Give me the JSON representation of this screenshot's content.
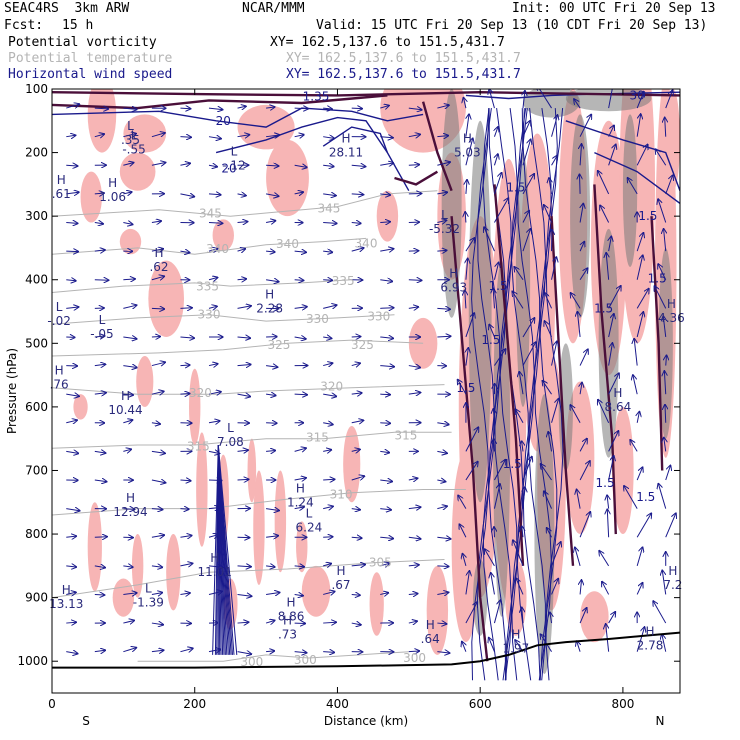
{
  "header": {
    "model": "SEAC4RS  3km ARW",
    "org": "NCAR/MMM",
    "init": "Init: 00 UTC Fri 20 Sep 13",
    "fcst_label": "Fcst:",
    "fcst_value": "15 h",
    "valid": "Valid: 15 UTC Fri 20 Sep 13 (10 CDT Fri 20 Sep 13)"
  },
  "fields": [
    {
      "name": "Potential vorticity",
      "xy": "XY= 162.5,137.6 to 151.5,431.7",
      "color": "#000000"
    },
    {
      "name": "Potential temperature",
      "xy": "XY= 162.5,137.6 to 151.5,431.7",
      "color": "#b4b4b4"
    },
    {
      "name": "Horizontal wind speed",
      "xy": "XY= 162.5,137.6 to 151.5,431.7",
      "color": "#1a1a8c"
    }
  ],
  "chart_data": {
    "type": "cross-section",
    "xlabel": "Distance (km)",
    "ylabel": "Pressure (hPa)",
    "xlim": [
      0,
      880
    ],
    "ylim": [
      1050,
      100
    ],
    "x_ticks": [
      0,
      200,
      400,
      600,
      800
    ],
    "y_ticks": [
      100,
      200,
      300,
      400,
      500,
      600,
      700,
      800,
      900,
      1000
    ],
    "x_end_labels": {
      "left": "S",
      "right": "N"
    },
    "theta_contours": [
      {
        "label": "345",
        "points": [
          [
            0,
            300
          ],
          [
            150,
            290
          ],
          [
            250,
            300
          ],
          [
            300,
            295
          ],
          [
            400,
            285
          ],
          [
            470,
            265
          ],
          [
            540,
            260
          ]
        ]
      },
      {
        "label": "340",
        "points": [
          [
            0,
            360
          ],
          [
            120,
            350
          ],
          [
            200,
            360
          ],
          [
            300,
            345
          ],
          [
            380,
            340
          ],
          [
            440,
            335
          ]
        ]
      },
      {
        "label": "335",
        "points": [
          [
            0,
            420
          ],
          [
            100,
            410
          ],
          [
            200,
            405
          ],
          [
            250,
            410
          ],
          [
            350,
            405
          ],
          [
            420,
            400
          ]
        ]
      },
      {
        "label": "330",
        "points": [
          [
            0,
            470
          ],
          [
            120,
            460
          ],
          [
            220,
            455
          ],
          [
            300,
            465
          ],
          [
            400,
            460
          ],
          [
            480,
            455
          ]
        ]
      },
      {
        "label": "325",
        "points": [
          [
            0,
            520
          ],
          [
            150,
            515
          ],
          [
            240,
            510
          ],
          [
            330,
            500
          ],
          [
            420,
            495
          ],
          [
            520,
            500
          ]
        ]
      },
      {
        "label": "320",
        "points": [
          [
            0,
            570
          ],
          [
            120,
            580
          ],
          [
            230,
            580
          ],
          [
            300,
            575
          ],
          [
            420,
            570
          ],
          [
            550,
            565
          ]
        ]
      },
      {
        "label": "315",
        "points": [
          [
            0,
            665
          ],
          [
            120,
            660
          ],
          [
            200,
            660
          ],
          [
            300,
            650
          ],
          [
            380,
            650
          ],
          [
            480,
            640
          ],
          [
            560,
            640
          ]
        ]
      },
      {
        "label": "310",
        "points": [
          [
            0,
            770
          ],
          [
            120,
            760
          ],
          [
            220,
            760
          ],
          [
            330,
            745
          ],
          [
            420,
            735
          ],
          [
            520,
            730
          ],
          [
            580,
            730
          ]
        ]
      },
      {
        "label": "305",
        "points": [
          [
            0,
            900
          ],
          [
            120,
            880
          ],
          [
            220,
            860
          ],
          [
            330,
            855
          ],
          [
            450,
            845
          ],
          [
            550,
            840
          ]
        ]
      },
      {
        "label": "300",
        "points": [
          [
            120,
            1000
          ],
          [
            240,
            1000
          ],
          [
            300,
            990
          ],
          [
            360,
            995
          ],
          [
            430,
            990
          ],
          [
            500,
            985
          ]
        ]
      }
    ],
    "theta_labels": [
      {
        "text": "345",
        "x": 222,
        "p": 296
      },
      {
        "text": "345",
        "x": 388,
        "p": 288
      },
      {
        "text": "340",
        "x": 232,
        "p": 352
      },
      {
        "text": "340",
        "x": 330,
        "p": 344
      },
      {
        "text": "340",
        "x": 440,
        "p": 343
      },
      {
        "text": "335",
        "x": 218,
        "p": 411
      },
      {
        "text": "335",
        "x": 408,
        "p": 402
      },
      {
        "text": "330",
        "x": 220,
        "p": 455
      },
      {
        "text": "330",
        "x": 372,
        "p": 462
      },
      {
        "text": "330",
        "x": 458,
        "p": 458
      },
      {
        "text": "325",
        "x": 318,
        "p": 503
      },
      {
        "text": "325",
        "x": 435,
        "p": 503
      },
      {
        "text": "320",
        "x": 208,
        "p": 578
      },
      {
        "text": "320",
        "x": 392,
        "p": 568
      },
      {
        "text": "315",
        "x": 205,
        "p": 662
      },
      {
        "text": "315",
        "x": 372,
        "p": 648
      },
      {
        "text": "315",
        "x": 496,
        "p": 645
      },
      {
        "text": "310",
        "x": 405,
        "p": 738
      },
      {
        "text": "305",
        "x": 460,
        "p": 845
      },
      {
        "text": "300",
        "x": 280,
        "p": 1001
      },
      {
        "text": "300",
        "x": 355,
        "p": 998
      },
      {
        "text": "300",
        "x": 508,
        "p": 995
      }
    ],
    "pv_extrema": [
      {
        "kind": "L",
        "label": ".35",
        "x": 110,
        "p": 180
      },
      {
        "kind": "L",
        "label": "-.55",
        "x": 115,
        "p": 195
      },
      {
        "kind": "H",
        "label": ".61",
        "x": 13,
        "p": 265
      },
      {
        "kind": "H",
        "label": "1.06",
        "x": 85,
        "p": 270
      },
      {
        "kind": "L",
        "label": "-.12",
        "x": 255,
        "p": 220
      },
      {
        "kind": "H",
        "label": ".62",
        "x": 150,
        "p": 380
      },
      {
        "kind": "H",
        "label": "2.28",
        "x": 305,
        "p": 445
      },
      {
        "kind": "L",
        "label": "-.02",
        "x": 10,
        "p": 465
      },
      {
        "kind": "L",
        "label": "-.05",
        "x": 70,
        "p": 485
      },
      {
        "kind": "H",
        "label": ".76",
        "x": 10,
        "p": 565
      },
      {
        "kind": "H",
        "label": "10.44",
        "x": 103,
        "p": 605
      },
      {
        "kind": "L",
        "label": "7.08",
        "x": 250,
        "p": 655
      },
      {
        "kind": "H",
        "label": "12.94",
        "x": 110,
        "p": 765
      },
      {
        "kind": "H",
        "label": "1.24",
        "x": 348,
        "p": 750
      },
      {
        "kind": "L",
        "label": "6.24",
        "x": 360,
        "p": 790
      },
      {
        "kind": "H",
        "label": "11.01",
        "x": 228,
        "p": 860
      },
      {
        "kind": "H",
        "label": ".67",
        "x": 405,
        "p": 880
      },
      {
        "kind": "L",
        "label": "-1.39",
        "x": 135,
        "p": 908
      },
      {
        "kind": "H",
        "label": "13.13",
        "x": 20,
        "p": 910
      },
      {
        "kind": "H",
        "label": "8.86",
        "x": 335,
        "p": 930
      },
      {
        "kind": "H",
        "label": ".73",
        "x": 330,
        "p": 958
      },
      {
        "kind": "H",
        "label": ".64",
        "x": 530,
        "p": 965
      },
      {
        "kind": "H",
        "label": "28.11",
        "x": 412,
        "p": 200
      },
      {
        "kind": "L",
        "label": "-5.32",
        "x": 550,
        "p": 320
      },
      {
        "kind": "H",
        "label": "5.03",
        "x": 582,
        "p": 200
      },
      {
        "kind": "H",
        "label": "6.93",
        "x": 563,
        "p": 412
      },
      {
        "kind": "H",
        "label": "4.36",
        "x": 868,
        "p": 460
      },
      {
        "kind": "H",
        "label": "8.64",
        "x": 793,
        "p": 600
      },
      {
        "kind": "H",
        "label": "1.97",
        "x": 650,
        "p": 980
      },
      {
        "kind": "H",
        "label": "2.78",
        "x": 838,
        "p": 975
      },
      {
        "kind": "H",
        "label": "7.2",
        "x": 870,
        "p": 880
      }
    ],
    "wind_speed_labels": [
      {
        "text": "20",
        "x": 240,
        "p": 150
      },
      {
        "text": "20",
        "x": 248,
        "p": 225
      },
      {
        "text": "1.35",
        "x": 370,
        "p": 112
      },
      {
        "text": "30",
        "x": 820,
        "p": 110
      },
      {
        "text": "1.5",
        "x": 835,
        "p": 300
      },
      {
        "text": "1.5",
        "x": 848,
        "p": 398
      },
      {
        "text": "1.5",
        "x": 773,
        "p": 445
      },
      {
        "text": "1.5",
        "x": 580,
        "p": 570
      },
      {
        "text": "1.5",
        "x": 775,
        "p": 720
      },
      {
        "text": "1.5",
        "x": 832,
        "p": 742
      },
      {
        "text": "1.5",
        "x": 650,
        "p": 255
      },
      {
        "text": "1.5",
        "x": 625,
        "p": 410
      },
      {
        "text": "1.5",
        "x": 645,
        "p": 690
      },
      {
        "text": "1.5",
        "x": 615,
        "p": 495
      }
    ]
  },
  "colors": {
    "pv_pink": "#f7b5b5",
    "pv_contour": "#4a0f3a",
    "theta": "#b4b4b4",
    "wind": "#1a1a8c",
    "terrain": "#000000"
  }
}
